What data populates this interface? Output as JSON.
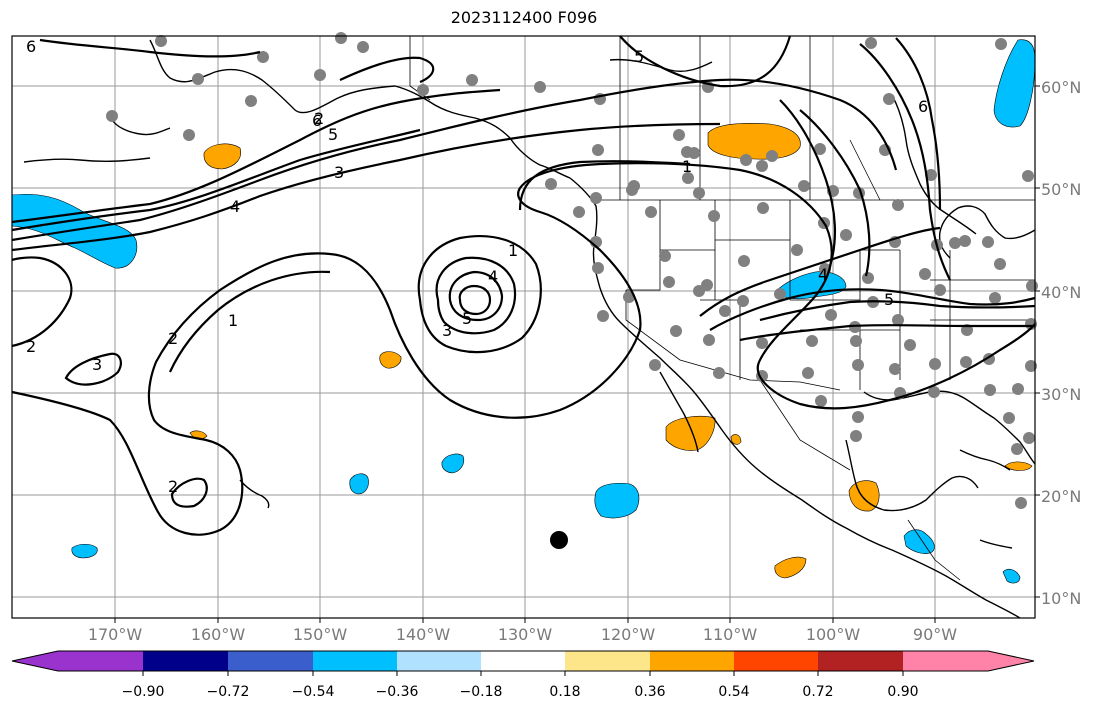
{
  "title": "2023112400 F096",
  "map": {
    "lat_labels": [
      "60°N",
      "50°N",
      "40°N",
      "30°N",
      "20°N",
      "10°N"
    ],
    "lon_labels": [
      "170°W",
      "160°W",
      "150°W",
      "140°W",
      "130°W",
      "120°W",
      "110°W",
      "100°W",
      "90°W"
    ],
    "contour_labels": [
      "6",
      "6",
      "5",
      "5",
      "4",
      "3",
      "3",
      "2",
      "2",
      "1",
      "1",
      "1",
      "2",
      "3",
      "4",
      "5",
      "2",
      "5",
      "6",
      "4"
    ]
  },
  "colorbar": {
    "colors": [
      "#9a32cd",
      "#00008b",
      "#3a5fcd",
      "#00bfff",
      "#b0e2ff",
      "#ffffff",
      "#fde68a",
      "#ffa500",
      "#ff4500",
      "#b22222",
      "#ff83a8"
    ],
    "ticks": [
      "−0.90",
      "−0.72",
      "−0.54",
      "−0.36",
      "−0.18",
      "0.18",
      "0.36",
      "0.54",
      "0.72",
      "0.90"
    ]
  }
}
